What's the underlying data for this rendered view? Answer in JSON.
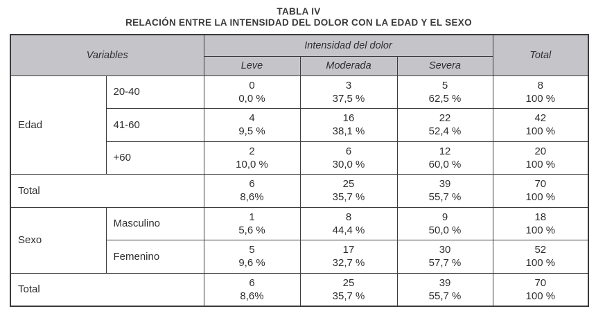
{
  "title": "TABLA IV",
  "subtitle": "RELACIÓN ENTRE LA INTENSIDAD DEL DOLOR CON LA EDAD Y EL SEXO",
  "colors": {
    "header_bg": "#c5c5c9",
    "border": "#3a3a3c",
    "text": "#2e2e30"
  },
  "table": {
    "header": {
      "variables": "Variables",
      "group": "Intensidad del dolor",
      "subcolumns": [
        "Leve",
        "Moderada",
        "Severa"
      ],
      "total": "Total"
    },
    "edad": {
      "label": "Edad",
      "rows": [
        {
          "category": "20-40",
          "values": [
            {
              "n": "0",
              "pct": "0,0 %"
            },
            {
              "n": "3",
              "pct": "37,5 %"
            },
            {
              "n": "5",
              "pct": "62,5 %"
            },
            {
              "n": "8",
              "pct": "100 %"
            }
          ]
        },
        {
          "category": "41-60",
          "values": [
            {
              "n": "4",
              "pct": "9,5 %"
            },
            {
              "n": "16",
              "pct": "38,1 %"
            },
            {
              "n": "22",
              "pct": "52,4 %"
            },
            {
              "n": "42",
              "pct": "100 %"
            }
          ]
        },
        {
          "category": "+60",
          "values": [
            {
              "n": "2",
              "pct": "10,0 %"
            },
            {
              "n": "6",
              "pct": "30,0 %"
            },
            {
              "n": "12",
              "pct": "60,0 %"
            },
            {
              "n": "20",
              "pct": "100 %"
            }
          ]
        }
      ],
      "total": {
        "label": "Total",
        "values": [
          {
            "n": "6",
            "pct": "8,6%"
          },
          {
            "n": "25",
            "pct": "35,7 %"
          },
          {
            "n": "39",
            "pct": "55,7 %"
          },
          {
            "n": "70",
            "pct": "100 %"
          }
        ]
      }
    },
    "sexo": {
      "label": "Sexo",
      "rows": [
        {
          "category": "Masculino",
          "values": [
            {
              "n": "1",
              "pct": "5,6 %"
            },
            {
              "n": "8",
              "pct": "44,4 %"
            },
            {
              "n": "9",
              "pct": "50,0 %"
            },
            {
              "n": "18",
              "pct": "100 %"
            }
          ]
        },
        {
          "category": "Femenino",
          "values": [
            {
              "n": "5",
              "pct": "9,6 %"
            },
            {
              "n": "17",
              "pct": "32,7 %"
            },
            {
              "n": "30",
              "pct": "57,7 %"
            },
            {
              "n": "52",
              "pct": "100 %"
            }
          ]
        }
      ],
      "total": {
        "label": "Total",
        "values": [
          {
            "n": "6",
            "pct": "8,6%"
          },
          {
            "n": "25",
            "pct": "35,7 %"
          },
          {
            "n": "39",
            "pct": "55,7 %"
          },
          {
            "n": "70",
            "pct": "100 %"
          }
        ]
      }
    }
  }
}
